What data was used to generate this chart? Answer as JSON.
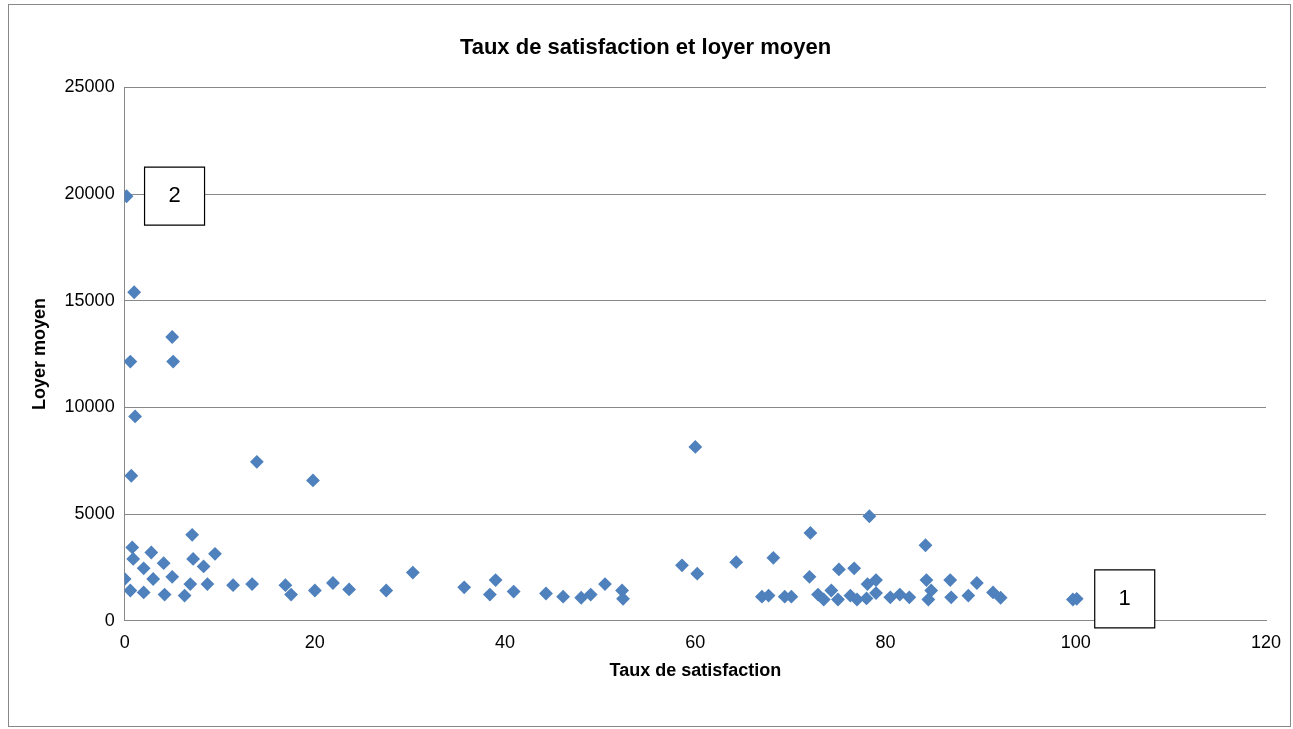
{
  "chart_data": {
    "type": "scatter",
    "title": "Taux de satisfaction et loyer moyen",
    "xlabel": "Taux de satisfaction",
    "ylabel": "Loyer moyen",
    "xlim": [
      0,
      120
    ],
    "xticks": [
      0,
      20,
      40,
      60,
      80,
      100,
      120
    ],
    "ylim": [
      0,
      25000
    ],
    "yticks": [
      0,
      5000,
      10000,
      15000,
      20000,
      25000
    ],
    "grid": "y",
    "legend": false,
    "marker": "diamond",
    "series": [
      {
        "color": "#4f81bd",
        "x": [
          0.2,
          1,
          0.6,
          5.1,
          5,
          1.1,
          0.7,
          13.9,
          19.8,
          60,
          72.1,
          78.3,
          84.2,
          7.1,
          0.8,
          2.8,
          9.5,
          0.9,
          4.1,
          7.2,
          2,
          0,
          5,
          8.3,
          0.6,
          2,
          4.2,
          6.3,
          6.9,
          3,
          8.7,
          11.4,
          13.4,
          16.9,
          17.5,
          20,
          21.9,
          23.6,
          27.5,
          30.3,
          35.7,
          39,
          38.4,
          40.9,
          44.3,
          46.1,
          48,
          49,
          50.5,
          52.3,
          52.4,
          58.6,
          60.2,
          64.3,
          68.2,
          67,
          67.7,
          69.4,
          70.1,
          72,
          75.1,
          76.7,
          72.9,
          74.3,
          76.3,
          78.1,
          79,
          81.5,
          84.3,
          84.8,
          86.8,
          88.7,
          89.6,
          91.3,
          92.1,
          100.1,
          99.7,
          77,
          78,
          82.5,
          84.5,
          86.9,
          73.5,
          75,
          79,
          80.5
        ],
        "values": [
          19900,
          15400,
          12150,
          12150,
          13300,
          9580,
          6800,
          7450,
          6580,
          8150,
          4120,
          4900,
          3540,
          4030,
          3440,
          3200,
          3140,
          2900,
          2700,
          2900,
          2460,
          1960,
          2060,
          2550,
          1420,
          1330,
          1230,
          1180,
          1720,
          1960,
          1720,
          1670,
          1720,
          1670,
          1230,
          1420,
          1770,
          1470,
          1420,
          2260,
          1570,
          1910,
          1230,
          1370,
          1280,
          1130,
          1080,
          1230,
          1720,
          1420,
          1030,
          2600,
          2210,
          2750,
          2950,
          1130,
          1180,
          1130,
          1130,
          2060,
          2410,
          2460,
          1230,
          1420,
          1180,
          1720,
          1910,
          1230,
          1910,
          1420,
          1910,
          1180,
          1770,
          1330,
          1080,
          1030,
          1000,
          1000,
          1050,
          1100,
          1000,
          1100,
          1000,
          1000,
          1300,
          1100
        ]
      }
    ],
    "annotations": [
      {
        "text": "2",
        "x": 0.2,
        "y": 19900
      },
      {
        "text": "1",
        "x": 100.1,
        "y": 1030
      }
    ]
  }
}
